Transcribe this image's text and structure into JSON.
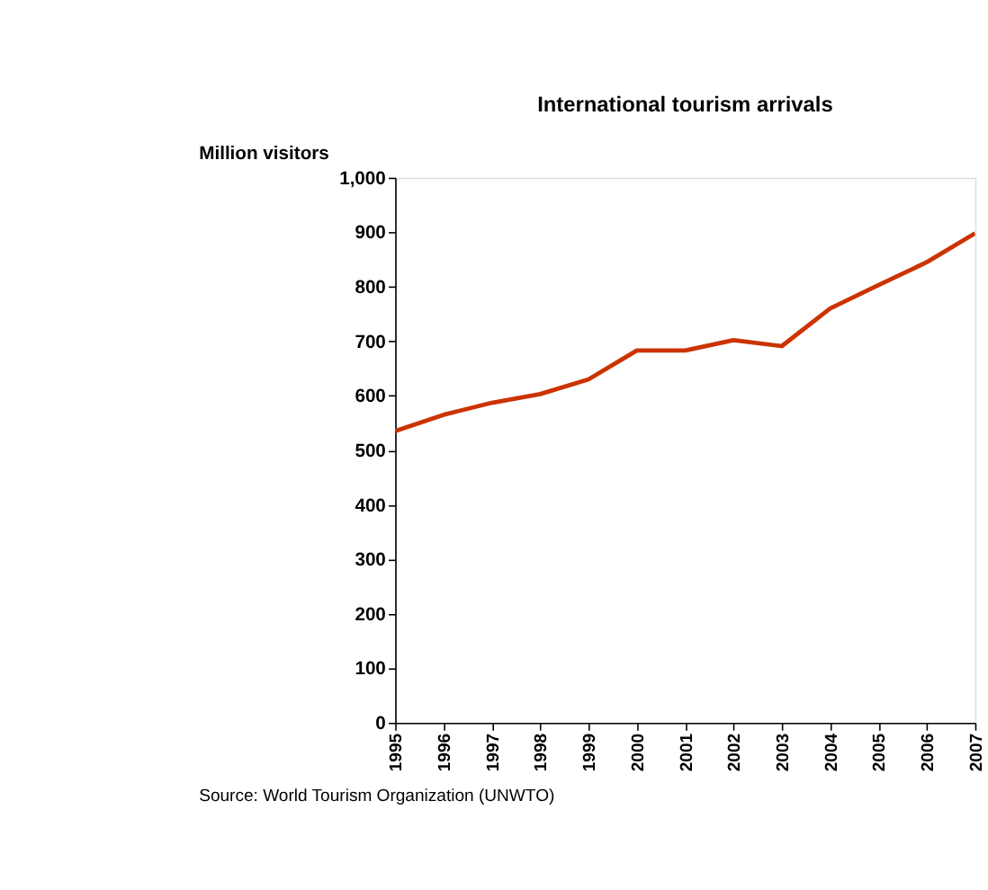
{
  "chart_data": {
    "type": "line",
    "title": "International tourism arrivals",
    "ylabel": "Million visitors",
    "x": [
      1995,
      1996,
      1997,
      1998,
      1999,
      2000,
      2001,
      2002,
      2003,
      2004,
      2005,
      2006,
      2007
    ],
    "series": [
      {
        "color": "#cc3300",
        "values": [
          535,
          565,
          587,
          603,
          630,
          683,
          683,
          702,
          691,
          760,
          803,
          845,
          898
        ]
      }
    ],
    "xlim": [
      1995,
      2007
    ],
    "xticks": [
      1995,
      1996,
      1997,
      1998,
      1999,
      2000,
      2001,
      2002,
      2003,
      2004,
      2005,
      2006,
      2007
    ],
    "ylim": [
      0,
      1000
    ],
    "yticks": [
      0,
      100,
      200,
      300,
      400,
      500,
      600,
      700,
      800,
      900,
      {
        "value": 1000,
        "label": "1,000"
      }
    ],
    "grid": false,
    "legend": false,
    "marker": "none",
    "line_style": "solid",
    "annotations": [
      "Source: World Tourism Organization (UNWTO)"
    ]
  }
}
